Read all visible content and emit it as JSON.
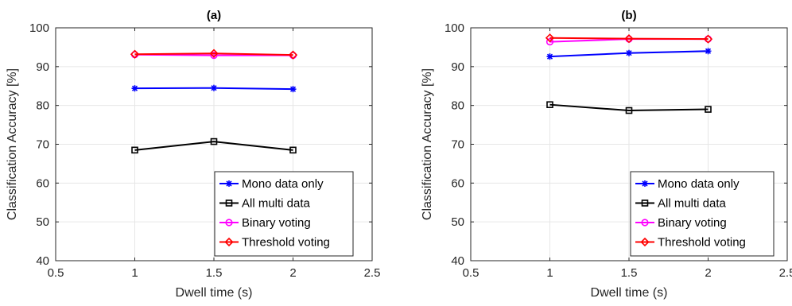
{
  "chart_data": [
    {
      "type": "line",
      "title": "(a)",
      "xlabel": "Dwell time (s)",
      "ylabel": "Classification Accuracy [%]",
      "xlim": [
        0.5,
        2.5
      ],
      "ylim": [
        40,
        100
      ],
      "xticks": [
        "0.5",
        "1",
        "1.5",
        "2",
        "2.5"
      ],
      "yticks": [
        "40",
        "50",
        "60",
        "70",
        "80",
        "90",
        "100"
      ],
      "grid": true,
      "legend_position": "bottom-right",
      "x": [
        1,
        1.5,
        2
      ],
      "series": [
        {
          "name": "Mono data only",
          "values": [
            84.4,
            84.5,
            84.2
          ],
          "color": "#0000ff",
          "marker": "asterisk"
        },
        {
          "name": "All multi data",
          "values": [
            68.5,
            70.7,
            68.5
          ],
          "color": "#000000",
          "marker": "square"
        },
        {
          "name": "Binary voting",
          "values": [
            93.1,
            92.9,
            92.9
          ],
          "color": "#ff00ff",
          "marker": "circle"
        },
        {
          "name": "Threshold voting",
          "values": [
            93.2,
            93.4,
            93.0
          ],
          "color": "#ff0000",
          "marker": "diamond"
        }
      ]
    },
    {
      "type": "line",
      "title": "(b)",
      "xlabel": "Dwell time (s)",
      "ylabel": "Classification Accuracy [%]",
      "xlim": [
        0.5,
        2.5
      ],
      "ylim": [
        40,
        100
      ],
      "xticks": [
        "0.5",
        "1",
        "1.5",
        "2",
        "2.5"
      ],
      "yticks": [
        "40",
        "50",
        "60",
        "70",
        "80",
        "90",
        "100"
      ],
      "grid": true,
      "legend_position": "bottom-right",
      "x": [
        1,
        1.5,
        2
      ],
      "series": [
        {
          "name": "Mono data only",
          "values": [
            92.6,
            93.5,
            94.0
          ],
          "color": "#0000ff",
          "marker": "asterisk"
        },
        {
          "name": "All multi data",
          "values": [
            80.2,
            78.7,
            79.0
          ],
          "color": "#000000",
          "marker": "square"
        },
        {
          "name": "Binary voting",
          "values": [
            96.4,
            97.1,
            97.1
          ],
          "color": "#ff00ff",
          "marker": "circle"
        },
        {
          "name": "Threshold voting",
          "values": [
            97.4,
            97.2,
            97.1
          ],
          "color": "#ff0000",
          "marker": "diamond"
        }
      ]
    }
  ]
}
